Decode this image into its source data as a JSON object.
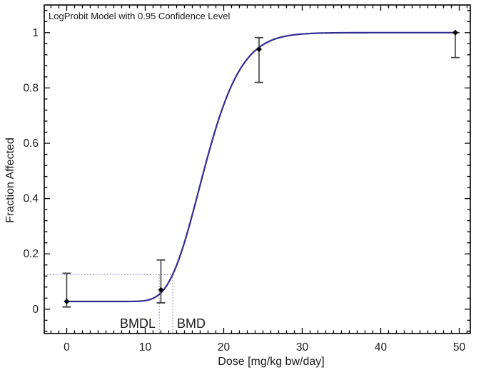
{
  "figure_title": "LogProbit Model with 0.95 Confidence Level",
  "x_axis": {
    "label": "Dose [mg/kg bw/day]",
    "tick_values": [
      0,
      10,
      20,
      30,
      40,
      50
    ],
    "tick_labels": [
      "0",
      "10",
      "20",
      "30",
      "40",
      "50"
    ],
    "minor_tick_step": 1
  },
  "y_axis": {
    "label": "Fraction Affected",
    "tick_values": [
      0,
      0.2,
      0.4,
      0.6,
      0.8,
      1
    ],
    "tick_labels": [
      "0",
      "0.2",
      "0.4",
      "0.6",
      "0.8",
      "1"
    ],
    "minor_tick_step": 0.04
  },
  "annotations": {
    "bmdl_label": "BMDL",
    "bmd_label": "BMD"
  },
  "chart_data": {
    "type": "line",
    "title": "LogProbit Model with 0.95 Confidence Level",
    "xlabel": "Dose [mg/kg bw/day]",
    "ylabel": "Fraction Affected",
    "xlim": [
      -2.86,
      51.41
    ],
    "ylim": [
      -0.088,
      1.1
    ],
    "grid": false,
    "legend": "none",
    "model": {
      "name": "logprobit",
      "background": 0.028,
      "probit_slope": 4.83,
      "ed50": 17.6,
      "dose_range": [
        0,
        49.5
      ]
    },
    "curve_sample": {
      "x": [
        0,
        5,
        10,
        12,
        13.5,
        15,
        17.6,
        20,
        22,
        24.5,
        27,
        30,
        35,
        40,
        49.5
      ],
      "y": [
        0.028,
        0.028,
        0.031,
        0.059,
        0.125,
        0.242,
        0.514,
        0.739,
        0.863,
        0.946,
        0.981,
        0.995,
        0.999,
        1.0,
        1.0
      ]
    },
    "observed_points": [
      {
        "dose": 0,
        "fraction": 0.028,
        "ci_low": 0.008,
        "ci_high": 0.13
      },
      {
        "dose": 12,
        "fraction": 0.07,
        "ci_low": 0.023,
        "ci_high": 0.178
      },
      {
        "dose": 24.5,
        "fraction": 0.94,
        "ci_low": 0.82,
        "ci_high": 0.982
      },
      {
        "dose": 49.5,
        "fraction": 1.0,
        "ci_low": 0.91,
        "ci_high": 1.0
      }
    ],
    "bmd": 13.5,
    "bmdl": 11.8,
    "bmr_fraction": 0.125
  },
  "colors": {
    "curve": "#312a90",
    "guide_lines": "#9595d2",
    "error_bars": "#404040",
    "marker": "#000000",
    "frame": "#000000",
    "text": "#1a1a1a"
  }
}
